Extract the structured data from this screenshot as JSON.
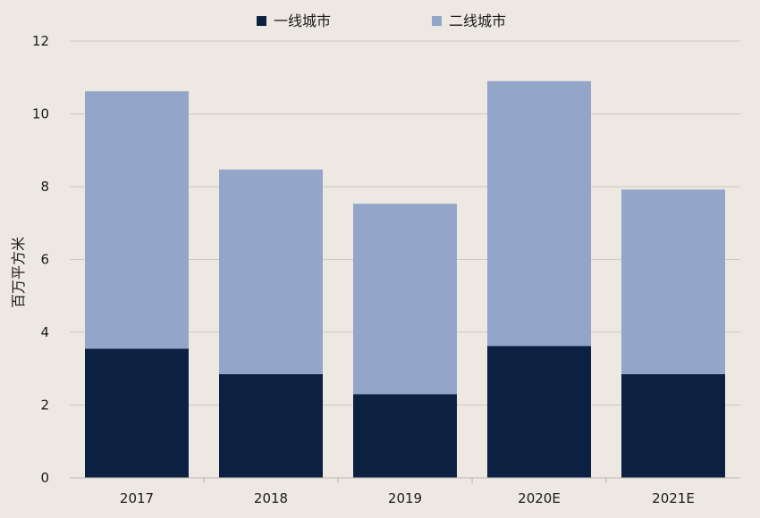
{
  "chart_data": {
    "type": "bar",
    "stacked": true,
    "categories": [
      "2017",
      "2018",
      "2019",
      "2020E",
      "2021E"
    ],
    "series": [
      {
        "name": "一线城市",
        "color": "#0c2142",
        "values": [
          3.55,
          2.85,
          2.3,
          3.62,
          2.85
        ]
      },
      {
        "name": "二线城市",
        "color": "#93a6c9",
        "values": [
          7.07,
          5.62,
          5.23,
          7.28,
          5.07
        ]
      }
    ],
    "ylabel": "百万平方米",
    "ylim": [
      0,
      12
    ],
    "yticks": [
      "0",
      "2",
      "4",
      "6",
      "8",
      "10",
      "12"
    ],
    "grid": true,
    "legend": "top-center"
  }
}
